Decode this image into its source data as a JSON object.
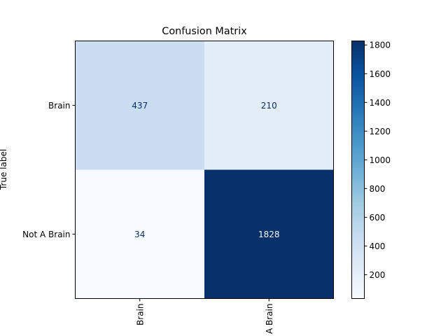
{
  "chart_data": {
    "type": "heatmap",
    "title": "Confusion Matrix",
    "ylabel": "True label",
    "xlabel": "",
    "row_labels": [
      "Brain",
      "Not A Brain"
    ],
    "col_labels": [
      "Brain",
      "Not A Brain"
    ],
    "values": [
      [
        437,
        210
      ],
      [
        34,
        1828
      ]
    ],
    "colormap": "Blues",
    "colorbar": {
      "min": 34,
      "max": 1828,
      "ticks": [
        200,
        400,
        600,
        800,
        1000,
        1200,
        1400,
        1600,
        1800
      ]
    }
  }
}
